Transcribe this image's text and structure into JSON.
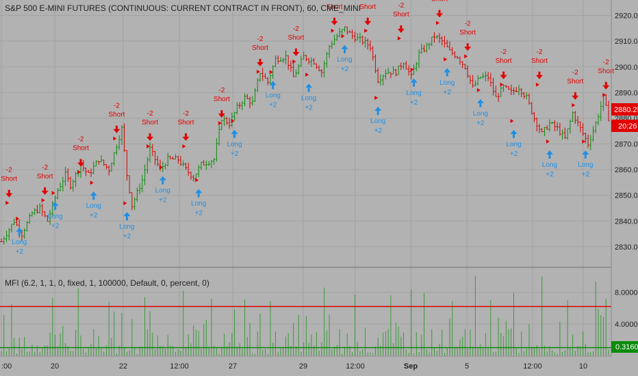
{
  "chart_data": {
    "type": "ohlc",
    "title": "S&P 500 E-MINI FUTURES (CONTINUOUS: CURRENT CONTRACT IN FRONT), 60, CME_MINI",
    "price_axis": {
      "ylim": [
        2822,
        2926
      ],
      "ticks": [
        "2920.00",
        "2910.00",
        "2900.00",
        "2890.00",
        "2880.00",
        "2870.00",
        "2860.00",
        "2850.00",
        "2840.00",
        "2830.00"
      ]
    },
    "time_axis": {
      "labels": [
        ":00",
        "20",
        "22",
        "12:00",
        "27",
        "29",
        "12:00",
        "Sep",
        "5",
        "12:00",
        "10"
      ]
    },
    "last_price_label": "2880.25",
    "countdown_label": "20:26",
    "price_path": [
      [
        0,
        2832
      ],
      [
        5,
        2840
      ],
      [
        8,
        2835
      ],
      [
        12,
        2843
      ],
      [
        15,
        2845
      ],
      [
        18,
        2840
      ],
      [
        22,
        2852
      ],
      [
        25,
        2858
      ],
      [
        27,
        2854
      ],
      [
        31,
        2862
      ],
      [
        34,
        2858
      ],
      [
        38,
        2864
      ],
      [
        42,
        2860
      ],
      [
        47,
        2876
      ],
      [
        49,
        2858
      ],
      [
        51,
        2846
      ],
      [
        55,
        2856
      ],
      [
        58,
        2868
      ],
      [
        62,
        2860
      ],
      [
        65,
        2864
      ],
      [
        69,
        2864
      ],
      [
        72,
        2860
      ],
      [
        75,
        2857
      ],
      [
        78,
        2862
      ],
      [
        83,
        2864
      ],
      [
        86,
        2880
      ],
      [
        89,
        2878
      ],
      [
        92,
        2884
      ],
      [
        95,
        2888
      ],
      [
        98,
        2886
      ],
      [
        101,
        2898
      ],
      [
        104,
        2894
      ],
      [
        107,
        2903
      ],
      [
        111,
        2904
      ],
      [
        114,
        2896
      ],
      [
        118,
        2904
      ],
      [
        122,
        2902
      ],
      [
        125,
        2898
      ],
      [
        128,
        2908
      ],
      [
        131,
        2912
      ],
      [
        134,
        2915
      ],
      [
        137,
        2912
      ],
      [
        141,
        2910
      ],
      [
        144,
        2908
      ],
      [
        147,
        2895
      ],
      [
        150,
        2898
      ],
      [
        154,
        2898
      ],
      [
        157,
        2902
      ],
      [
        160,
        2896
      ],
      [
        163,
        2905
      ],
      [
        166,
        2908
      ],
      [
        169,
        2912
      ],
      [
        172,
        2910
      ],
      [
        175,
        2906
      ],
      [
        178,
        2904
      ],
      [
        181,
        2900
      ],
      [
        184,
        2892
      ],
      [
        187,
        2896
      ],
      [
        190,
        2896
      ],
      [
        193,
        2888
      ],
      [
        196,
        2892
      ],
      [
        199,
        2890
      ],
      [
        202,
        2892
      ],
      [
        205,
        2888
      ],
      [
        208,
        2880
      ],
      [
        211,
        2874
      ],
      [
        214,
        2878
      ],
      [
        217,
        2876
      ],
      [
        220,
        2872
      ],
      [
        223,
        2882
      ],
      [
        226,
        2876
      ],
      [
        229,
        2870
      ],
      [
        232,
        2878
      ],
      [
        235,
        2888
      ],
      [
        237,
        2880
      ]
    ],
    "signals": [
      {
        "type": "short",
        "bar": 3,
        "price": 2850,
        "label": "Short",
        "qty": "-2"
      },
      {
        "type": "long",
        "bar": 7,
        "price": 2838,
        "label": "Long",
        "qty": "+2"
      },
      {
        "type": "short",
        "bar": 17,
        "price": 2851,
        "label": "Short",
        "qty": "-2"
      },
      {
        "type": "long",
        "bar": 21,
        "price": 2848,
        "label": "Long",
        "qty": "+2"
      },
      {
        "type": "short",
        "bar": 31,
        "price": 2862,
        "label": "Short",
        "qty": "-2"
      },
      {
        "type": "long",
        "bar": 36,
        "price": 2852,
        "label": "Long",
        "qty": "+2"
      },
      {
        "type": "short",
        "bar": 45,
        "price": 2875,
        "label": "Short",
        "qty": "-2"
      },
      {
        "type": "long",
        "bar": 49,
        "price": 2844,
        "label": "Long",
        "qty": "+2"
      },
      {
        "type": "short",
        "bar": 58,
        "price": 2872,
        "label": "Short",
        "qty": "-2"
      },
      {
        "type": "long",
        "bar": 63,
        "price": 2858,
        "label": "Long",
        "qty": "+2"
      },
      {
        "type": "short",
        "bar": 72,
        "price": 2872,
        "label": "Short",
        "qty": "-2"
      },
      {
        "type": "long",
        "bar": 77,
        "price": 2853,
        "label": "Long",
        "qty": "+2"
      },
      {
        "type": "short",
        "bar": 86,
        "price": 2881,
        "label": "Short",
        "qty": "-2"
      },
      {
        "type": "long",
        "bar": 91,
        "price": 2876,
        "label": "Long",
        "qty": "+2"
      },
      {
        "type": "short",
        "bar": 101,
        "price": 2901,
        "label": "Short",
        "qty": "-2"
      },
      {
        "type": "long",
        "bar": 106,
        "price": 2895,
        "label": "Long",
        "qty": "+2"
      },
      {
        "type": "short",
        "bar": 115,
        "price": 2905,
        "label": "Short",
        "qty": "-2"
      },
      {
        "type": "long",
        "bar": 120,
        "price": 2894,
        "label": "Long",
        "qty": "+2"
      },
      {
        "type": "short",
        "bar": 130,
        "price": 2917,
        "label": "Short",
        "qty": "-2"
      },
      {
        "type": "long",
        "bar": 134,
        "price": 2909,
        "label": "Long",
        "qty": "+2"
      },
      {
        "type": "short",
        "bar": 143,
        "price": 2917,
        "label": "Short",
        "qty": "-2"
      },
      {
        "type": "long",
        "bar": 147,
        "price": 2885,
        "label": "Long",
        "qty": "+2"
      },
      {
        "type": "short",
        "bar": 156,
        "price": 2914,
        "label": "Short",
        "qty": "-2"
      },
      {
        "type": "long",
        "bar": 161,
        "price": 2896,
        "label": "Long",
        "qty": "+2"
      },
      {
        "type": "short",
        "bar": 171,
        "price": 2920,
        "label": "Short",
        "qty": "-2"
      },
      {
        "type": "long",
        "bar": 174,
        "price": 2900,
        "label": "Long",
        "qty": "+2"
      },
      {
        "type": "short",
        "bar": 182,
        "price": 2907,
        "label": "Short",
        "qty": "-2"
      },
      {
        "type": "long",
        "bar": 187,
        "price": 2888,
        "label": "Long",
        "qty": "+2"
      },
      {
        "type": "short",
        "bar": 196,
        "price": 2896,
        "label": "Short",
        "qty": "-2"
      },
      {
        "type": "long",
        "bar": 200,
        "price": 2876,
        "label": "Long",
        "qty": "+2"
      },
      {
        "type": "short",
        "bar": 210,
        "price": 2896,
        "label": "Short",
        "qty": "-2"
      },
      {
        "type": "long",
        "bar": 214,
        "price": 2868,
        "label": "Long",
        "qty": "+2"
      },
      {
        "type": "short",
        "bar": 224,
        "price": 2888,
        "label": "Short",
        "qty": "-2"
      },
      {
        "type": "long",
        "bar": 228,
        "price": 2868,
        "label": "Long",
        "qty": "+2"
      },
      {
        "type": "short",
        "bar": 236,
        "price": 2892,
        "label": "Short",
        "qty": "-2"
      }
    ],
    "indicator": {
      "label": "MFI (6.2, 1, 1, 0, fixed, 1, 100000, Default, 0, percent, 0)",
      "ylim": [
        0,
        11
      ],
      "ticks": [
        "8.0000",
        "4.0000"
      ],
      "upper_level": 6.2,
      "lower_level": 1,
      "last_value_label": "0.3160",
      "spikes": [
        [
          4,
          6.5
        ],
        [
          20,
          7.3
        ],
        [
          30,
          8.5
        ],
        [
          42,
          6.8
        ],
        [
          56,
          7.4
        ],
        [
          71,
          8.2
        ],
        [
          82,
          7.2
        ],
        [
          95,
          7.1
        ],
        [
          105,
          6.9
        ],
        [
          126,
          8.6
        ],
        [
          138,
          7.7
        ],
        [
          152,
          7.6
        ],
        [
          160,
          8.4
        ],
        [
          165,
          7.9
        ],
        [
          176,
          6.9
        ],
        [
          185,
          10.1
        ],
        [
          191,
          7.0
        ],
        [
          200,
          7.9
        ],
        [
          211,
          10.0
        ],
        [
          221,
          7.0
        ],
        [
          232,
          9.4
        ],
        [
          236,
          7.2
        ]
      ]
    },
    "colors": {
      "background": "#b2b2b2",
      "up_bar": "#0b8a0b",
      "down_bar": "#d40000",
      "short_signal": "#e00000",
      "long_signal": "#1e8fe6",
      "upper_line": "#e00000",
      "lower_line": "#0b8a0b",
      "histogram": "#3a9a3a",
      "last_price_badge": "#e00000",
      "indicator_badge": "#0b8a0b",
      "grid": "#a3a3a3",
      "axis_text": "#1f1f1f"
    }
  }
}
